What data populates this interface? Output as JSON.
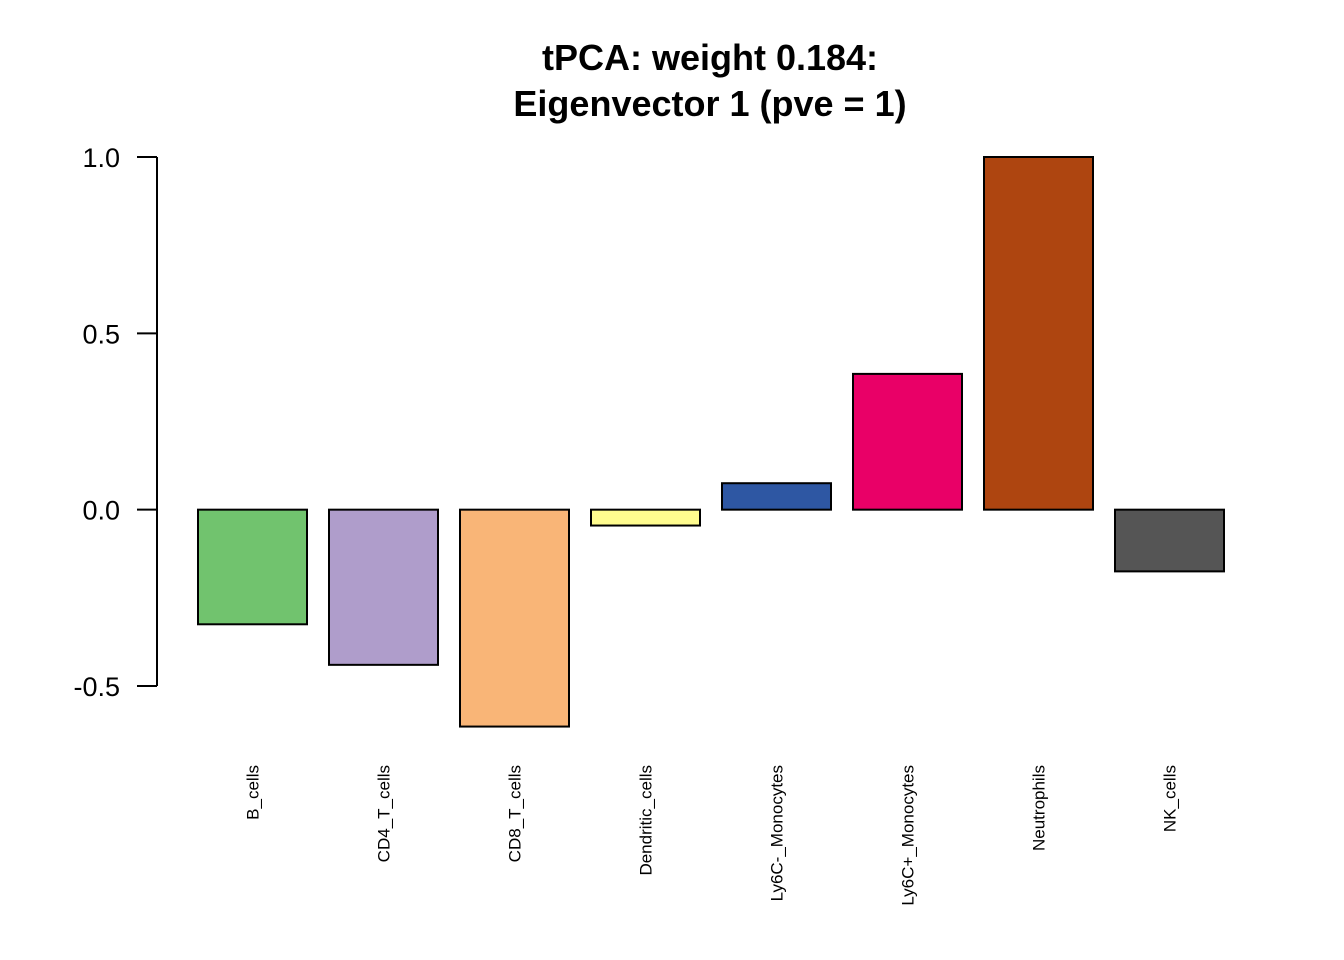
{
  "chart_data": {
    "type": "bar",
    "title_line1": "tPCA: weight 0.184:",
    "title_line2": "Eigenvector 1 (pve = 1)",
    "xlabel": "",
    "ylabel": "",
    "ylim": [
      -0.5,
      1.0
    ],
    "yticks": [
      -0.5,
      0.0,
      0.5,
      1.0
    ],
    "ytick_labels": [
      "-0.5",
      "0.0",
      "0.5",
      "1.0"
    ],
    "grid": false,
    "categories": [
      "B_cells",
      "CD4_T_cells",
      "CD8_T_cells",
      "Dendritic_cells",
      "Ly6C-_Monocytes",
      "Ly6C+_Monocytes",
      "Neutrophils",
      "NK_cells"
    ],
    "values": [
      -0.325,
      -0.44,
      -0.615,
      -0.045,
      0.075,
      0.385,
      1.0,
      -0.175
    ],
    "colors": [
      "#71C36E",
      "#AF9DCB",
      "#F9B577",
      "#FFFC8F",
      "#2E57A3",
      "#E90067",
      "#AE4510",
      "#555555"
    ]
  }
}
